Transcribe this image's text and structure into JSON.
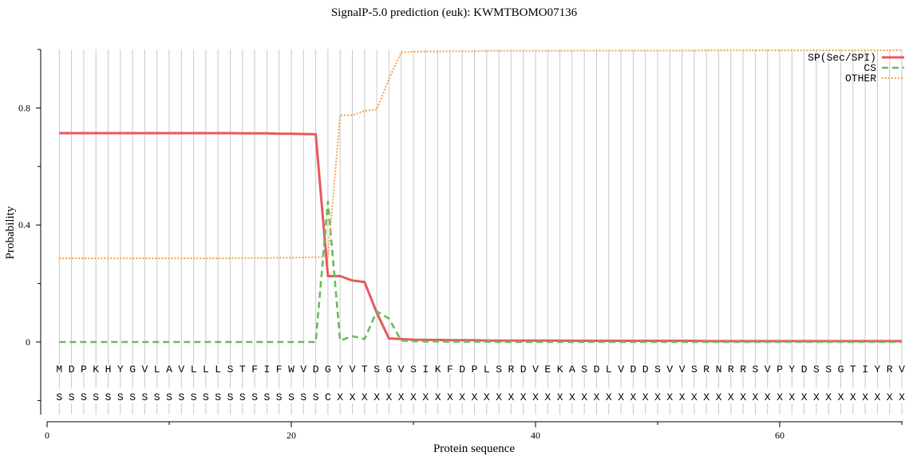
{
  "chart_data": {
    "type": "line",
    "title": "SignalP-5.0 prediction (euk):  KWMTBOMO07136",
    "xlabel": "Protein sequence",
    "ylabel": "Probability",
    "xlim": [
      0,
      70
    ],
    "ylim": [
      -0.25,
      1.0
    ],
    "x_ticks": [
      0,
      20,
      40,
      60
    ],
    "x_minor_ticks": [
      10,
      30,
      50,
      70
    ],
    "y_ticks": [
      0,
      0.4,
      0.8
    ],
    "y_tick_labels": [
      "0",
      "0.4",
      "0.8"
    ],
    "y_minor_ticks": [
      -0.2,
      0.2,
      0.6,
      1.0
    ],
    "grid": true,
    "legend": "top-right",
    "sequence": "MDPKHYGVLAVLLLSTFIFWVDGYVTSGVSIKFDPLSRDVEKASDLVDDSVVSRNRRSVPYDSSGTIYRV",
    "annotation": "SSSSSSSSSSSSSSSSSSSSSSCXXXXXXXXXXXXXXXXXXXXXXXXXXXXXXXXXXXXXXXXXXXXXXXX",
    "series": [
      {
        "name": "SP(Sec/SPI)",
        "color": "#e8585c",
        "values": [
          0.714,
          0.714,
          0.714,
          0.714,
          0.714,
          0.714,
          0.714,
          0.714,
          0.714,
          0.714,
          0.714,
          0.714,
          0.714,
          0.714,
          0.714,
          0.713,
          0.713,
          0.713,
          0.712,
          0.712,
          0.711,
          0.71,
          0.225,
          0.225,
          0.21,
          0.205,
          0.1,
          0.012,
          0.01,
          0.008,
          0.007,
          0.007,
          0.006,
          0.006,
          0.006,
          0.005,
          0.005,
          0.005,
          0.005,
          0.005,
          0.005,
          0.005,
          0.004,
          0.004,
          0.004,
          0.004,
          0.004,
          0.004,
          0.004,
          0.004,
          0.004,
          0.004,
          0.004,
          0.003,
          0.003,
          0.003,
          0.003,
          0.003,
          0.003,
          0.003,
          0.003,
          0.003,
          0.003,
          0.003,
          0.003,
          0.003,
          0.003,
          0.003,
          0.003,
          0.003
        ]
      },
      {
        "name": "CS",
        "color": "#6aba5c",
        "values": [
          0.0,
          0.0,
          0.0,
          0.0,
          0.0,
          0.0,
          0.0,
          0.0,
          0.0,
          0.0,
          0.0,
          0.0,
          0.0,
          0.0,
          0.0,
          0.0,
          0.0,
          0.0,
          0.0,
          0.0,
          0.0,
          0.0,
          0.48,
          0.005,
          0.02,
          0.01,
          0.105,
          0.08,
          0.005,
          0.003,
          0.002,
          0.002,
          0.001,
          0.001,
          0.001,
          0.001,
          0.0,
          0.0,
          0.0,
          0.0,
          0.0,
          0.0,
          0.0,
          0.0,
          0.0,
          0.0,
          0.0,
          0.0,
          0.0,
          0.0,
          0.0,
          0.0,
          0.0,
          0.0,
          0.0,
          0.0,
          0.0,
          0.0,
          0.0,
          0.0,
          0.0,
          0.0,
          0.0,
          0.0,
          0.0,
          0.0,
          0.0,
          0.0,
          0.0,
          0.0
        ]
      },
      {
        "name": "OTHER",
        "color": "#f4a04a",
        "values": [
          0.286,
          0.286,
          0.286,
          0.286,
          0.286,
          0.286,
          0.286,
          0.286,
          0.286,
          0.286,
          0.286,
          0.286,
          0.286,
          0.286,
          0.286,
          0.287,
          0.287,
          0.287,
          0.288,
          0.288,
          0.289,
          0.29,
          0.29,
          0.775,
          0.775,
          0.79,
          0.795,
          0.9,
          0.99,
          0.992,
          0.993,
          0.993,
          0.994,
          0.994,
          0.994,
          0.995,
          0.995,
          0.995,
          0.995,
          0.995,
          0.995,
          0.995,
          0.996,
          0.996,
          0.996,
          0.996,
          0.996,
          0.996,
          0.996,
          0.996,
          0.996,
          0.996,
          0.996,
          0.997,
          0.997,
          0.997,
          0.997,
          0.997,
          0.997,
          0.997,
          0.997,
          0.997,
          0.997,
          0.997,
          0.997,
          0.997,
          0.997,
          0.997,
          0.997,
          0.997
        ]
      }
    ]
  }
}
